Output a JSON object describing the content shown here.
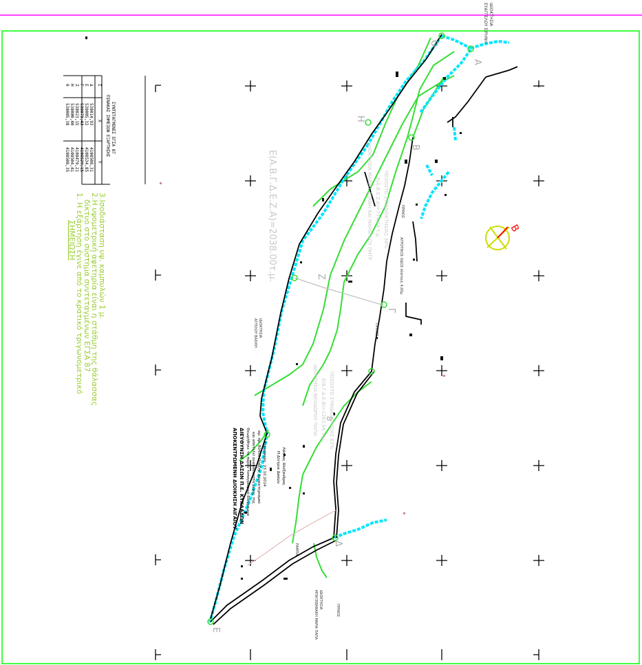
{
  "colors": {
    "boundary": "#00ff00",
    "top_line": "#ff00ff",
    "cyan": "#00e5ff",
    "parcel": "#000000",
    "grey_text": "#c8c8c8",
    "notes": "#9acd32",
    "north_arrow": "#ff0000"
  },
  "top_right_label": {
    "line1": "ΙΔΙΟΚΤΗΣΙΑ",
    "line2": "ΕΥΑΓΓΕΛΟΥ ΕΙΡΗΝΗ"
  },
  "vertex_labels": [
    "Θ",
    "Α",
    "Β",
    "Γ",
    "Δ",
    "Ε",
    "Ζ",
    "Η"
  ],
  "area_label": "Ε(Α.Β.Γ.Δ.Ε.Ζ.Α)=2038.00τ.μ.",
  "owner_block_1": {
    "line1": "ΙΔΙΟΚΤΗΣΙΑ ΜΑΡΙΑΣ ΣΤΑΘΗ ΚΑΙ ΜΑΡΑΓΚΟΥ ΠΗΤΡ",
    "line2": "Ε(Α.Β.Ε.Ζ.Α)=774,44 τ.μ.",
    "line3": "ΠΟΣΟΣΤΟ ΣΥΝΙΔΙΟΚΤΗΣΙΑΣ 38%",
    "line4": "ΠΡΙΝΟΣ"
  },
  "road_label": "ΑΓΡΟΤΙΚΟΣ ΟΔΟΣ πλάτους 4,00μ",
  "owner_block_2": {
    "line1": "ΙΔΙΟΚΤΗΣΙΑ ΘΕΟΔΩΡΟΥ ΠΑΠΑ",
    "line2": "Ε(Β.Γ.Δ.Ε.Β)=1263.56 τ.μ.",
    "line3": "ΠΟΣΟΣΤΟ ΣΥΝΙΔΙΟΚΤΗΣΙΑΣ 62%",
    "line4": "ΠΡΙΝΟΣ"
  },
  "owner_left": {
    "line1": "ΙΔΙΟΚΤΗΣΙΑ",
    "line2": "ΑΓΓΕΛΟΥ ΒΑΣΙΛΗ"
  },
  "owner_bottom": {
    "line1": "ΙΔΙΟΚΤΗΣΙΑ",
    "line2": "ΜΠΑΞΕΒΑΝΑΚΗ ΜΑΡΙΑ ΠΑΠΑ",
    "line3": "ΠΡΙΝΟΣ"
  },
  "ramp_label": "ΡΑΜΠΑ",
  "authority": {
    "line1": "ΑΠΟΚΕΝΤΡΩΜΕΝΗ ΔΙΟΙΚΗΣΗ ΑΙΓΑΙΟΥ",
    "line2": "ΔΙΕΥΘΥΝΣΗ ΔΑΣΩΝ Π.Ε. ΚΥΚΛΑΔΩΝ",
    "line3": "Θεωρήθηκε το παρόν τοπογραφικό διάγραμμα",
    "line4": "και αποτελεί αναπόσπαστο μέρος της",
    "line5": "αρ. πρ. 80450 Πράξης Χαρακτηρισμού",
    "line6": "Ερμούπολη, 23.10.2014",
    "line7": "Η Δ/ντρια Δασών",
    "line8": "Λάππας Αλέξανδρος"
  },
  "coord_table": {
    "title": "ΠΙΝΑΚΑΣ ΣΗΜΕΙΩΝ ΕΞΑΡΤΗΣΗΣ",
    "subtitle": "ΣΥΝΤΕΤΑΓΜΕΝΕΣ ΕΓΣΑ 87",
    "headers": [
      "Σ",
      "X",
      "Y"
    ],
    "rows": [
      [
        "Δ",
        "538014,93",
        "4108508,31"
      ],
      [
        "Ε",
        "538005,32",
        "4108534,85"
      ],
      [
        "Γ",
        "538073,43",
        "4108529,15"
      ],
      [
        "Ζ",
        "538023,15",
        "4108479,21"
      ],
      [
        "Η",
        "538000,40",
        "4108504,41"
      ],
      [
        "Θ",
        "538005,38",
        "4108508,35"
      ]
    ]
  },
  "note_header": "ΣΗΜΕΙΩΣΗ",
  "notes": [
    "1. Η εξάρτηση έγινε από το κρατικό τριγωνομετρικό",
    "δίκτυο στο σύστημα συντεταγμένων ΕΓΣΑ 87",
    "2.Η υψομετρική αφετηρία είναι η στάθμη της θάλασσας",
    "3.Ισοδιάσταση υψ. καμπυλών 1 μ."
  ],
  "north_label": "B"
}
